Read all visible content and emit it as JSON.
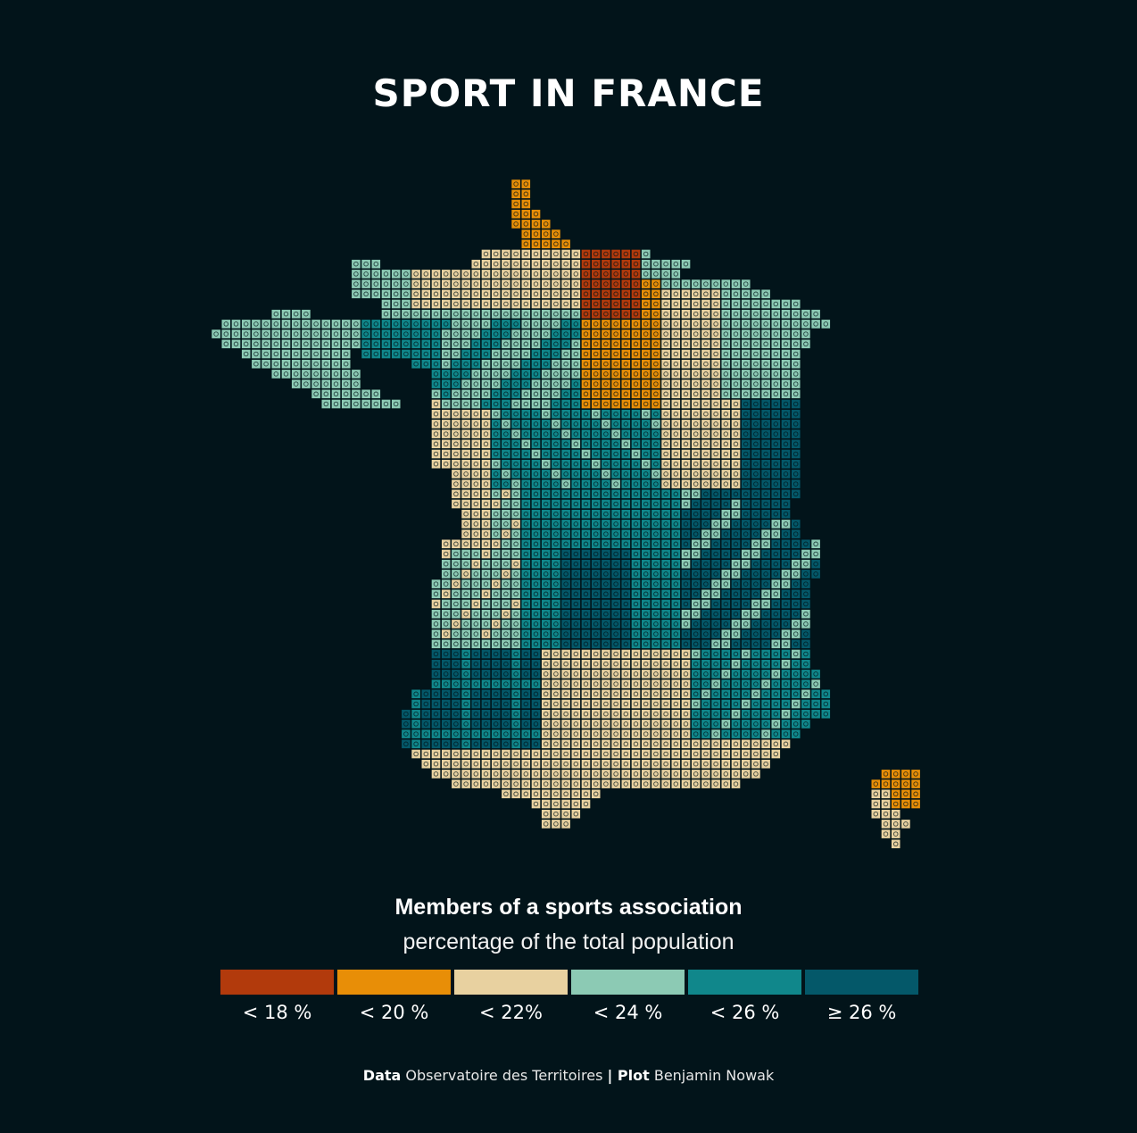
{
  "title": "SPORT IN FRANCE",
  "legend": {
    "title": "Members of a sports association",
    "subtitle": "percentage of the total population",
    "items": [
      {
        "label": "< 18 %",
        "color": "#b23a0c"
      },
      {
        "label": "< 20 %",
        "color": "#e88e07"
      },
      {
        "label": "< 22%",
        "color": "#e8d1a0"
      },
      {
        "label": "< 24 %",
        "color": "#8ccab4"
      },
      {
        "label": "< 26 %",
        "color": "#10878b"
      },
      {
        "label": "≥ 26 %",
        "color": "#045869"
      }
    ]
  },
  "caption": {
    "data_label": "Data",
    "data_source": " Observatoire des Territoires ",
    "separator": "|",
    "plot_label": " Plot",
    "plot_author": " Benjamin Nowak"
  },
  "map": {
    "region": "France",
    "colors": {
      "lt18": "#b23a0c",
      "lt20": "#e88e07",
      "lt22": "#e8d1a0",
      "lt24": "#8ccab4",
      "lt26": "#10878b",
      "ge26": "#045869",
      "background": "#02141a"
    }
  }
}
